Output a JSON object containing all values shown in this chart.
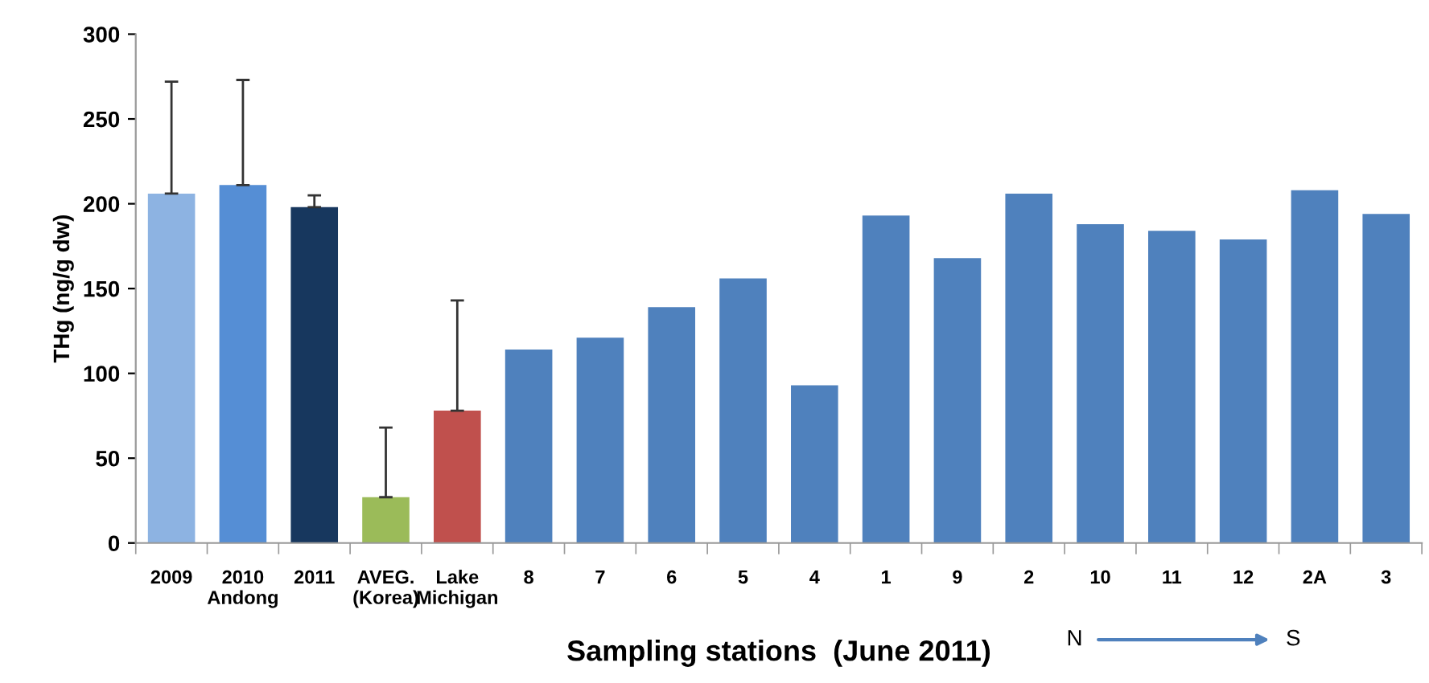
{
  "chart_data": {
    "type": "bar",
    "ylabel": "THg (ng/g dw)",
    "xlabel": "Sampling stations  (June 2011)",
    "categories": [
      "2009",
      "2010\nAndong",
      "2011",
      "AVEG.\n(Korea)",
      "Lake\nMichigan",
      "8",
      "7",
      "6",
      "5",
      "4",
      "1",
      "9",
      "2",
      "10",
      "11",
      "12",
      "2A",
      "3"
    ],
    "values": [
      206,
      211,
      198,
      27,
      78,
      114,
      121,
      139,
      156,
      93,
      193,
      168,
      206,
      188,
      184,
      179,
      208,
      194
    ],
    "colors": [
      "#8db3e2",
      "#558ed5",
      "#17375e",
      "#9bbb59",
      "#c0504d",
      "#4f81bd",
      "#4f81bd",
      "#4f81bd",
      "#4f81bd",
      "#4f81bd",
      "#4f81bd",
      "#4f81bd",
      "#4f81bd",
      "#4f81bd",
      "#4f81bd",
      "#4f81bd",
      "#4f81bd",
      "#4f81bd"
    ],
    "errors": [
      [
        206,
        272
      ],
      [
        211,
        273
      ],
      [
        198,
        205
      ],
      [
        27,
        68
      ],
      [
        78,
        143
      ],
      null,
      null,
      null,
      null,
      null,
      null,
      null,
      null,
      null,
      null,
      null,
      null,
      null
    ],
    "ylim": [
      0,
      300
    ],
    "yticks": [
      0,
      50,
      100,
      150,
      200,
      250,
      300
    ],
    "grid": false,
    "legend": false,
    "annotations": [
      "N",
      "S"
    ]
  }
}
